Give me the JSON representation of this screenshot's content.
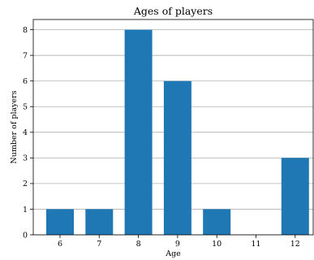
{
  "chart_data": {
    "type": "bar",
    "title": "Ages of players",
    "xlabel": "Age",
    "ylabel": "Number of players",
    "categories": [
      "6",
      "7",
      "8",
      "9",
      "10",
      "11",
      "12"
    ],
    "values": [
      1,
      1,
      8,
      6,
      1,
      0,
      3
    ],
    "ylim": [
      0,
      8.4
    ],
    "yticks": [
      0,
      1,
      2,
      3,
      4,
      5,
      6,
      7,
      8
    ],
    "grid": "y-major",
    "bar_color": "#1f77b4"
  }
}
